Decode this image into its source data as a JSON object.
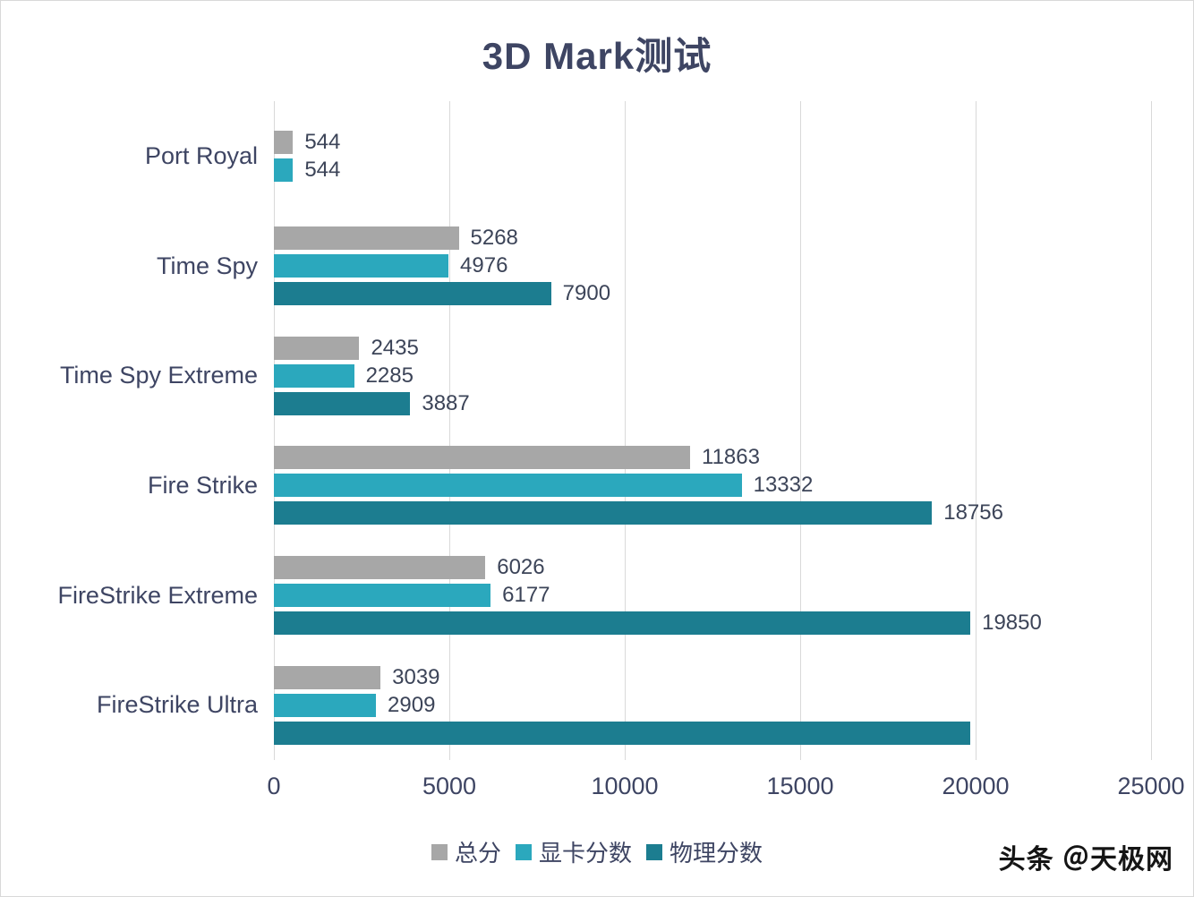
{
  "title": "3D Mark测试",
  "watermark": "头条 ＠天极网",
  "colors": {
    "series_total": "#a7a7a7",
    "series_gpu": "#2ba8bd",
    "series_physics": "#1c7d90",
    "text": "#3e4563",
    "grid": "#d9d9d9"
  },
  "chart_data": {
    "type": "bar",
    "orientation": "horizontal",
    "title": "3D Mark测试",
    "xlabel": "",
    "ylabel": "",
    "xlim": [
      0,
      25000
    ],
    "xticks": [
      0,
      5000,
      10000,
      15000,
      20000,
      25000
    ],
    "grid": true,
    "legend_position": "bottom",
    "categories": [
      "Port Royal",
      "Time Spy",
      "Time Spy Extreme",
      "Fire Strike",
      "FireStrike Extreme",
      "FireStrike Ultra"
    ],
    "series": [
      {
        "name": "总分",
        "color": "#a7a7a7",
        "values": [
          544,
          5268,
          2435,
          11863,
          6026,
          3039
        ],
        "labels": [
          "544",
          "5268",
          "2435",
          "11863",
          "6026",
          "3039"
        ]
      },
      {
        "name": "显卡分数",
        "color": "#2ba8bd",
        "values": [
          544,
          4976,
          2285,
          13332,
          6177,
          2909
        ],
        "labels": [
          "544",
          "4976",
          "2285",
          "13332",
          "6177",
          "2909"
        ]
      },
      {
        "name": "物理分数",
        "color": "#1c7d90",
        "values": [
          null,
          7900,
          3887,
          18756,
          19850,
          19850
        ],
        "labels": [
          "",
          "7900",
          "3887",
          "18756",
          "19850",
          ""
        ]
      }
    ]
  }
}
